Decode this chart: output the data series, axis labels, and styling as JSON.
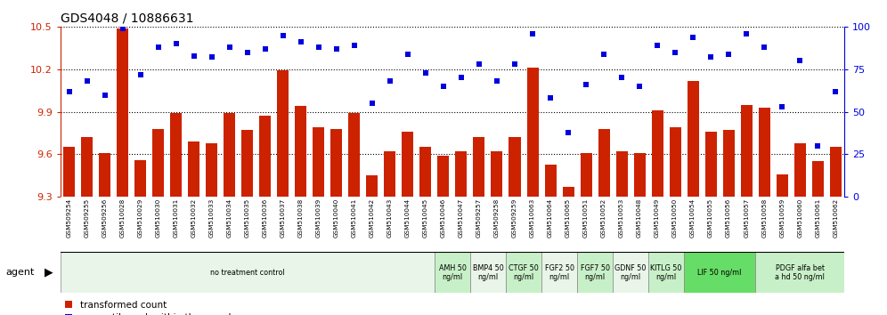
{
  "title": "GDS4048 / 10886631",
  "samples": [
    "GSM509254",
    "GSM509255",
    "GSM509256",
    "GSM510028",
    "GSM510029",
    "GSM510030",
    "GSM510031",
    "GSM510032",
    "GSM510033",
    "GSM510034",
    "GSM510035",
    "GSM510036",
    "GSM510037",
    "GSM510038",
    "GSM510039",
    "GSM510040",
    "GSM510041",
    "GSM510042",
    "GSM510043",
    "GSM510044",
    "GSM510045",
    "GSM510046",
    "GSM510047",
    "GSM509257",
    "GSM509258",
    "GSM509259",
    "GSM510063",
    "GSM510064",
    "GSM510065",
    "GSM510051",
    "GSM510052",
    "GSM510053",
    "GSM510048",
    "GSM510049",
    "GSM510050",
    "GSM510054",
    "GSM510055",
    "GSM510056",
    "GSM510057",
    "GSM510058",
    "GSM510059",
    "GSM510060",
    "GSM510061",
    "GSM510062"
  ],
  "bar_values": [
    9.65,
    9.72,
    9.61,
    10.49,
    9.56,
    9.78,
    9.89,
    9.69,
    9.68,
    9.89,
    9.77,
    9.87,
    10.19,
    9.94,
    9.79,
    9.78,
    9.89,
    9.45,
    9.62,
    9.76,
    9.65,
    9.59,
    9.62,
    9.72,
    9.62,
    9.72,
    10.21,
    9.53,
    9.37,
    9.61,
    9.78,
    9.62,
    9.61,
    9.91,
    9.79,
    10.12,
    9.76,
    9.77,
    9.95,
    9.93,
    9.46,
    9.68,
    9.55,
    9.65
  ],
  "dot_values": [
    62,
    68,
    60,
    99,
    72,
    88,
    90,
    83,
    82,
    88,
    85,
    87,
    95,
    91,
    88,
    87,
    89,
    55,
    68,
    84,
    73,
    65,
    70,
    78,
    68,
    78,
    96,
    58,
    38,
    66,
    84,
    70,
    65,
    89,
    85,
    94,
    82,
    84,
    96,
    88,
    53,
    80,
    30,
    62
  ],
  "agent_groups": [
    {
      "label": "no treatment control",
      "start": 0,
      "end": 21,
      "color": "#e8f5e8"
    },
    {
      "label": "AMH 50\nng/ml",
      "start": 21,
      "end": 23,
      "color": "#c8f0c8"
    },
    {
      "label": "BMP4 50\nng/ml",
      "start": 23,
      "end": 25,
      "color": "#e8f5e8"
    },
    {
      "label": "CTGF 50\nng/ml",
      "start": 25,
      "end": 27,
      "color": "#c8f0c8"
    },
    {
      "label": "FGF2 50\nng/ml",
      "start": 27,
      "end": 29,
      "color": "#e8f5e8"
    },
    {
      "label": "FGF7 50\nng/ml",
      "start": 29,
      "end": 31,
      "color": "#c8f0c8"
    },
    {
      "label": "GDNF 50\nng/ml",
      "start": 31,
      "end": 33,
      "color": "#e8f5e8"
    },
    {
      "label": "KITLG 50\nng/ml",
      "start": 33,
      "end": 35,
      "color": "#c8f0c8"
    },
    {
      "label": "LIF 50 ng/ml",
      "start": 35,
      "end": 39,
      "color": "#66dd66"
    },
    {
      "label": "PDGF alfa bet\na hd 50 ng/ml",
      "start": 39,
      "end": 44,
      "color": "#c8f0c8"
    }
  ],
  "ylim_left": [
    9.3,
    10.5
  ],
  "yticks_left": [
    9.3,
    9.6,
    9.9,
    10.2,
    10.5
  ],
  "ylim_right": [
    0,
    100
  ],
  "yticks_right": [
    0,
    25,
    50,
    75,
    100
  ],
  "bar_color": "#cc2200",
  "dot_color": "#0000dd",
  "bar_width": 0.65,
  "background_color": "#ffffff",
  "label_color_red": "#cc2200",
  "label_color_blue": "#0000dd",
  "xtick_bg_color": "#cccccc",
  "gridline_color": "#555555"
}
